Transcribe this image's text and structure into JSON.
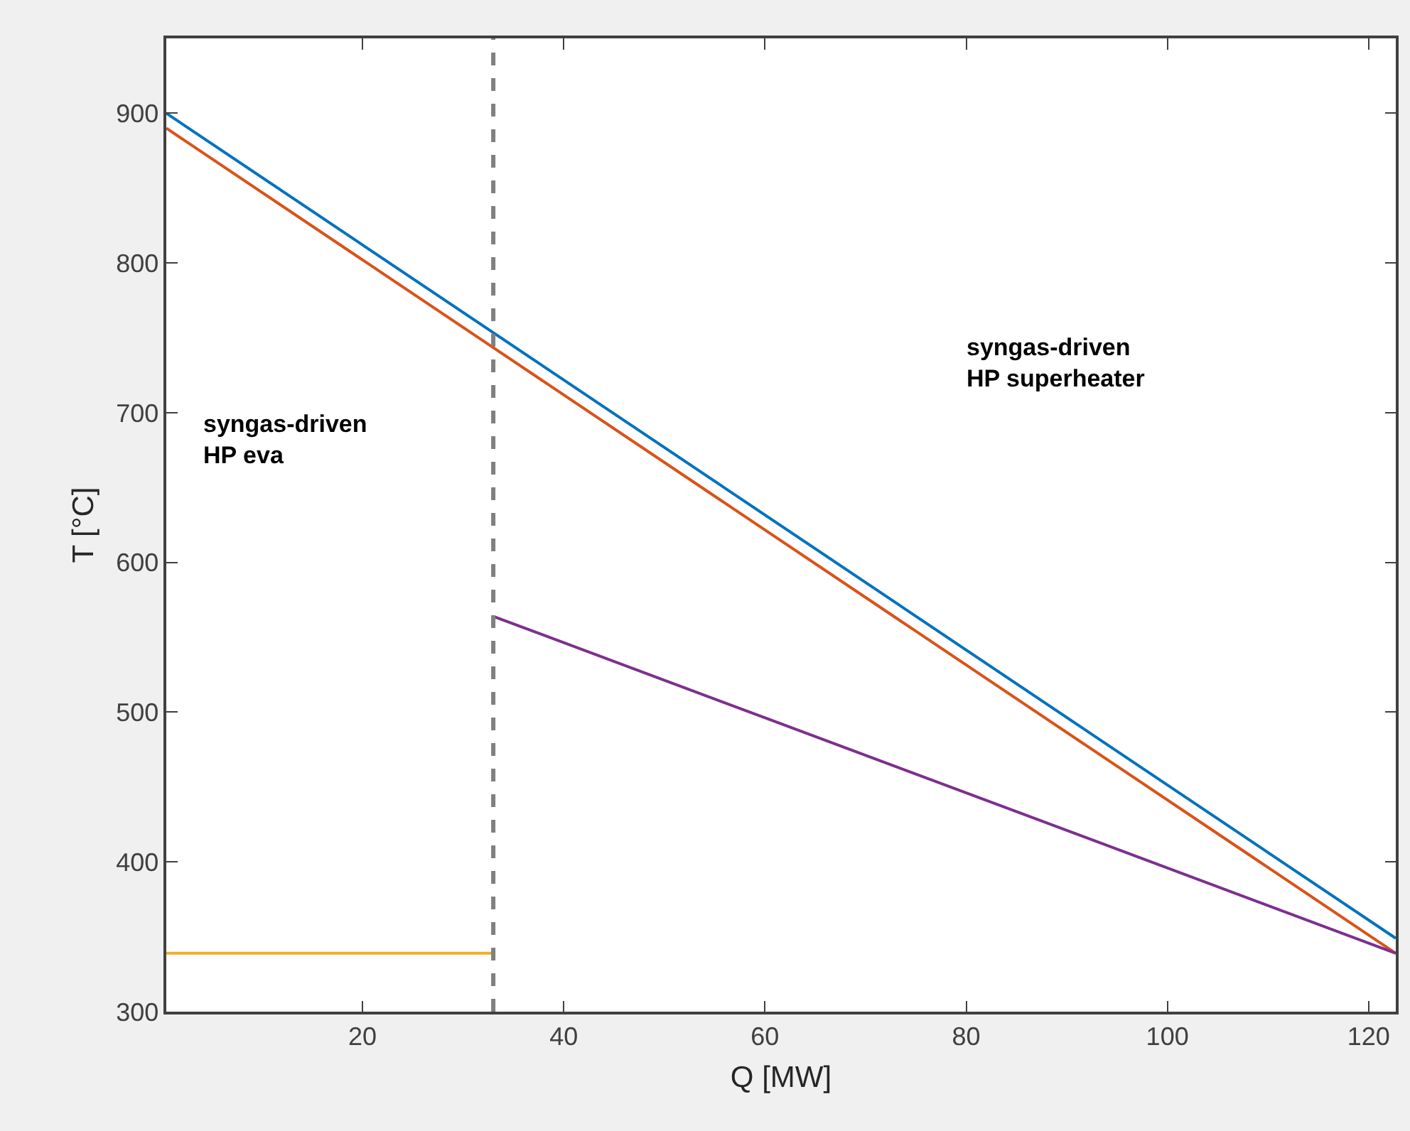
{
  "chart_data": {
    "type": "line",
    "xlabel": "Q [MW]",
    "ylabel": "T [°C]",
    "series": [
      {
        "color": "#0072bd",
        "x": [
          0.5,
          122.7
        ],
        "values": [
          900,
          349
        ]
      },
      {
        "color": "#d95319",
        "x": [
          0.5,
          122.7
        ],
        "values": [
          890,
          339
        ]
      },
      {
        "color": "#edb120",
        "x": [
          0.5,
          33
        ],
        "values": [
          339,
          339
        ]
      },
      {
        "color": "#7e2f8e",
        "x": [
          33,
          122.7
        ],
        "values": [
          564,
          339
        ]
      }
    ],
    "xlim": [
      0.5,
      122.7
    ],
    "ylim": [
      300,
      950
    ],
    "xticks": [
      20,
      40,
      60,
      80,
      100,
      120
    ],
    "yticks": [
      300,
      400,
      500,
      600,
      700,
      800,
      900
    ],
    "grid": false,
    "marker": "none",
    "line_style": "solid",
    "ref_lines": [
      {
        "axis": "x",
        "value": 33,
        "color": "#808080",
        "line_style": "dashed"
      }
    ],
    "annotations": [
      "syngas-driven\nHP eva",
      "syngas-driven\nHP superheater"
    ]
  }
}
